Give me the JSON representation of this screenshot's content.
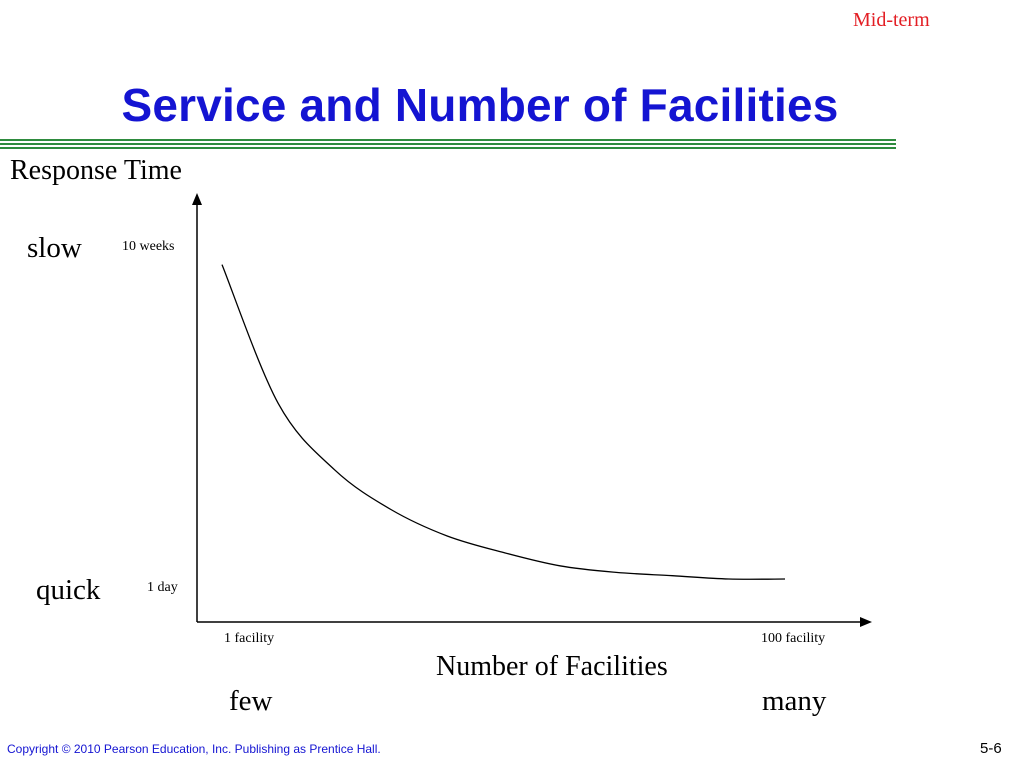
{
  "slide": {
    "tag": "Mid-term",
    "title": "Service and Number of Facilities",
    "footer": "Copyright © 2010 Pearson Education, Inc. Publishing as Prentice Hall.",
    "page_number": "5-6"
  },
  "colors": {
    "title": "#1414d2",
    "tag": "#e31e24",
    "rule": "#2e8b3e",
    "footer": "#1414d2"
  },
  "chart_data": {
    "type": "line",
    "title": "",
    "ylabel": "Response  Time",
    "xlabel": "Number of Facilities",
    "y_qualitative": {
      "high": "slow",
      "low": "quick"
    },
    "x_qualitative": {
      "low": "few",
      "high": "many"
    },
    "y_ticks": [
      "10 weeks",
      "1 day"
    ],
    "x_ticks": [
      "1 facility",
      "100 facility"
    ],
    "series": [
      {
        "x": [
          0,
          0.1,
          0.2,
          0.3,
          0.4,
          0.5,
          0.6,
          0.7,
          0.8,
          0.9,
          1.0
        ],
        "y": [
          0.95,
          0.53,
          0.33,
          0.21,
          0.13,
          0.08,
          0.04,
          0.02,
          0.01,
          0.0,
          0.0
        ]
      }
    ],
    "x_scale": "qualitative, 0 = 1 facility, 1 = 100 facility",
    "y_scale": "qualitative, 0 = 1 day, 1 = 10 weeks",
    "grid": false,
    "legend": "none"
  }
}
